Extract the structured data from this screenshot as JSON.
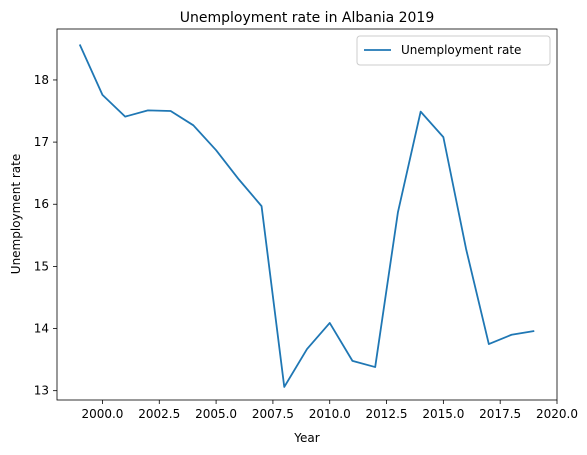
{
  "chart_data": {
    "type": "line",
    "title": "Unemployment rate in Albania 2019",
    "xlabel": "Year",
    "ylabel": "Unemployment rate",
    "xlim": [
      1998.0,
      2020.0
    ],
    "ylim": [
      12.85,
      18.82
    ],
    "x_ticks": [
      2000.0,
      2002.5,
      2005.0,
      2007.5,
      2010.0,
      2012.5,
      2015.0,
      2017.5,
      2020.0
    ],
    "x_tick_labels": [
      "2000.0",
      "2002.5",
      "2005.0",
      "2007.5",
      "2010.0",
      "2012.5",
      "2015.0",
      "2017.5",
      "2020.0"
    ],
    "y_ticks": [
      13,
      14,
      15,
      16,
      17,
      18
    ],
    "y_tick_labels": [
      "13",
      "14",
      "15",
      "16",
      "17",
      "18"
    ],
    "legend": {
      "placement": "top-right",
      "entries": [
        "Unemployment rate"
      ]
    },
    "grid": false,
    "series": [
      {
        "name": "Unemployment rate",
        "color": "#1f77b4",
        "x": [
          1999,
          2000,
          2001,
          2002,
          2003,
          2004,
          2005,
          2006,
          2007,
          2008,
          2009,
          2010,
          2011,
          2012,
          2013,
          2014,
          2015,
          2016,
          2017,
          2018,
          2019
        ],
        "values": [
          18.57,
          17.76,
          17.41,
          17.51,
          17.5,
          17.27,
          16.87,
          16.4,
          15.97,
          13.06,
          13.67,
          14.09,
          13.48,
          13.38,
          15.87,
          17.49,
          17.08,
          15.28,
          13.75,
          13.9,
          13.96
        ]
      }
    ]
  }
}
